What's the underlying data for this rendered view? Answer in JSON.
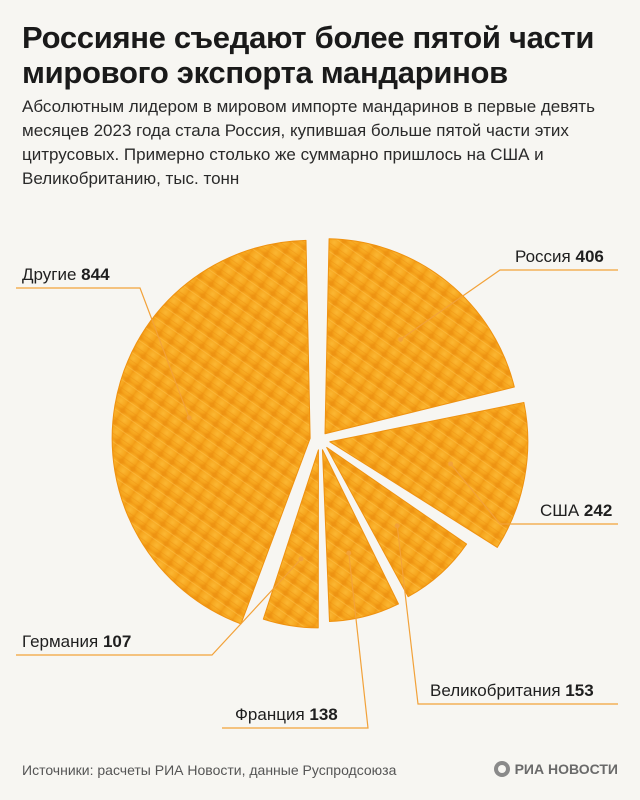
{
  "title": "Россияне съедают более пятой части мирового экспорта мандаринов",
  "subtitle": "Абсолютным лидером в мировом импорте мандаринов в первые девять месяцев 2023 года стала Россия, купившая больше пятой части этих цитрусовых. Примерно столько же суммарно пришлось на США и Великобританию, тыс. тонн",
  "footer": "Источники: расчеты РИА Новости, данные Руспродсоюза",
  "logo_text": "РИА НОВОСТИ",
  "colors": {
    "slice": "#f6a51d",
    "slice_dark": "#ef9210",
    "leader": "#f2a23a",
    "background": "#f7f6f2"
  },
  "chart_data": {
    "type": "pie",
    "title": "Россияне съедают более пятой части мирового экспорта мандаринов",
    "unit": "тыс. тонн",
    "slices": [
      {
        "name": "Россия",
        "value": 406
      },
      {
        "name": "США",
        "value": 242
      },
      {
        "name": "Великобритания",
        "value": 153
      },
      {
        "name": "Франция",
        "value": 138
      },
      {
        "name": "Германия",
        "value": 107
      },
      {
        "name": "Другие",
        "value": 844
      }
    ]
  }
}
